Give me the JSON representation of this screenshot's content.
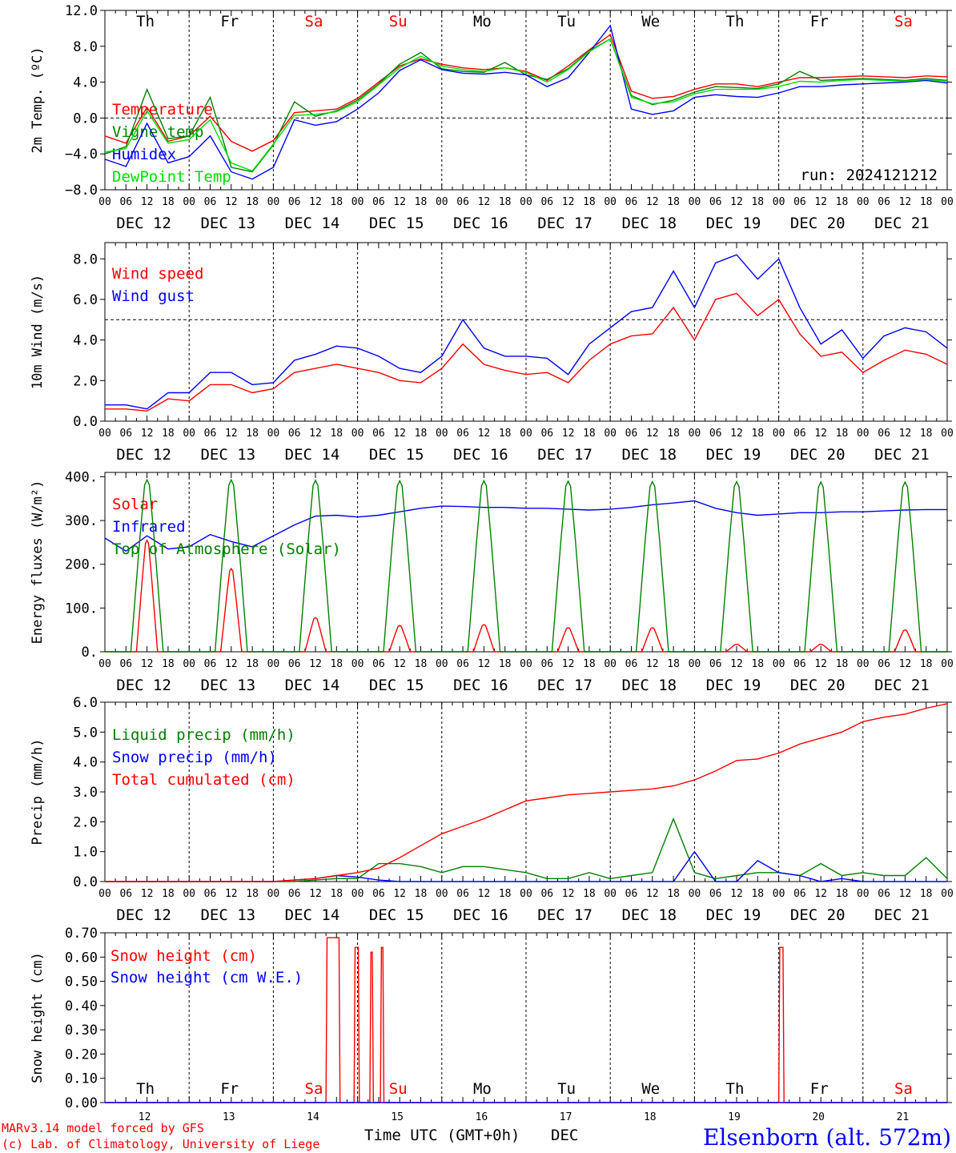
{
  "colors": {
    "red": "#ff0000",
    "green": "#008000",
    "blue": "#0000ff",
    "lime": "#00e000"
  },
  "footer": {
    "model_line": "MARv3.14 model forced by GFS",
    "credit_line": "(c) Lab. of Climatology, University of Liege",
    "time_label": "Time UTC (GMT+0h)",
    "month_label": "DEC",
    "site": "Elsenborn (alt. 572m)"
  },
  "chart_data": [
    {
      "type": "line",
      "panel": "temperature",
      "ylabel": "2m Temp. (ºC)",
      "ylim": [
        -8,
        12
      ],
      "yticks": [
        "−8.0",
        "−4.0",
        "0.0",
        "4.0",
        "8.0",
        "12.0"
      ],
      "ytick_values": [
        -8,
        -4,
        0,
        4,
        8,
        12
      ],
      "ref_line": 0,
      "run_label": "run: 2024121212",
      "day_names": [
        "Th",
        "Fr",
        "Sa",
        "Su",
        "Mo",
        "Tu",
        "We",
        "Th",
        "Fr",
        "Sa"
      ],
      "x_hours_ticks": [
        "00",
        "06",
        "12",
        "18"
      ],
      "x_dates": [
        "DEC 12",
        "DEC 13",
        "DEC 14",
        "DEC 15",
        "DEC 16",
        "DEC 17",
        "DEC 18",
        "DEC 19",
        "DEC 20",
        "DEC 21"
      ],
      "x_hours": [
        0,
        6,
        12,
        18,
        24,
        30,
        36,
        42,
        48,
        54,
        60,
        66,
        72,
        78,
        84,
        90,
        96,
        102,
        108,
        114,
        120,
        126,
        132,
        138,
        144,
        150,
        156,
        162,
        168,
        174,
        180,
        186,
        192,
        198,
        204,
        210,
        216,
        222,
        228,
        234,
        240
      ],
      "series": [
        {
          "name": "Temperature",
          "color": "red",
          "values": [
            -2,
            -2.8,
            1.2,
            -2.6,
            -2,
            0.2,
            -2.6,
            -3.7,
            -2.5,
            0.6,
            0.8,
            1,
            2.2,
            4,
            5.8,
            6.6,
            6,
            5.6,
            5.4,
            5.6,
            5.2,
            4.2,
            5.8,
            7.6,
            9.3,
            3,
            2.2,
            2.4,
            3.2,
            3.8,
            3.8,
            3.5,
            4,
            4.5,
            4.5,
            4.6,
            4.7,
            4.6,
            4.5,
            4.7,
            4.6
          ]
        },
        {
          "name": "Vigne temp",
          "color": "green",
          "values": [
            -4,
            -3.2,
            3.2,
            -2.3,
            -2,
            2.3,
            -5.5,
            -6,
            -3,
            1.8,
            0.2,
            0.8,
            2,
            3.8,
            6,
            7.3,
            5.5,
            5.2,
            5.1,
            6.2,
            4.8,
            4.3,
            5.5,
            7.5,
            8.8,
            2.5,
            1.5,
            2,
            2.9,
            3.5,
            3.4,
            3.3,
            3.8,
            5.2,
            4.2,
            4.3,
            4.4,
            4.3,
            4.2,
            4.4,
            4.2
          ]
        },
        {
          "name": "Humidex",
          "color": "blue",
          "values": [
            -4.6,
            -5.4,
            -0.6,
            -5,
            -4.3,
            -2,
            -6,
            -6.8,
            -5.5,
            -0.2,
            -0.8,
            -0.4,
            1,
            2.8,
            5.3,
            6.5,
            5.4,
            5,
            4.9,
            5.1,
            4.8,
            3.5,
            4.5,
            7.3,
            10.3,
            1,
            0.4,
            0.8,
            2.3,
            2.6,
            2.4,
            2.3,
            2.8,
            3.5,
            3.5,
            3.7,
            3.8,
            3.9,
            4,
            4.2,
            3.9
          ]
        },
        {
          "name": "DewPoint Temp",
          "color": "lime",
          "values": [
            -3.8,
            -3.4,
            0.8,
            -2.8,
            -2.4,
            -0.2,
            -5,
            -5.9,
            -2.9,
            0.3,
            0.4,
            0.7,
            1.8,
            3.7,
            5.6,
            6.9,
            5.8,
            5.4,
            5.2,
            5.6,
            5.1,
            4,
            5.4,
            7.4,
            8.8,
            2.3,
            1.6,
            1.8,
            2.7,
            3.2,
            3.2,
            3.2,
            3.5,
            4.1,
            4,
            4.2,
            4.3,
            4.2,
            4.1,
            4.3,
            4.1
          ]
        }
      ]
    },
    {
      "type": "line",
      "panel": "wind",
      "ylabel": "10m Wind (m/s)",
      "ylim": [
        0,
        8.8
      ],
      "yticks": [
        "0.0",
        "2.0",
        "4.0",
        "6.0",
        "8.0"
      ],
      "ytick_values": [
        0,
        2,
        4,
        6,
        8
      ],
      "ref_line": 5,
      "x_hours_ticks": [
        "00",
        "06",
        "12",
        "18"
      ],
      "x_dates": [
        "DEC 12",
        "DEC 13",
        "DEC 14",
        "DEC 15",
        "DEC 16",
        "DEC 17",
        "DEC 18",
        "DEC 19",
        "DEC 20",
        "DEC 21"
      ],
      "x_hours": [
        0,
        6,
        12,
        18,
        24,
        30,
        36,
        42,
        48,
        54,
        60,
        66,
        72,
        78,
        84,
        90,
        96,
        102,
        108,
        114,
        120,
        126,
        132,
        138,
        144,
        150,
        156,
        162,
        168,
        174,
        180,
        186,
        192,
        198,
        204,
        210,
        216,
        222,
        228,
        234,
        240
      ],
      "series": [
        {
          "name": "Wind speed",
          "color": "red",
          "values": [
            0.6,
            0.6,
            0.5,
            1.1,
            1,
            1.8,
            1.8,
            1.4,
            1.6,
            2.4,
            2.6,
            2.8,
            2.6,
            2.4,
            2,
            1.9,
            2.6,
            3.8,
            2.8,
            2.5,
            2.3,
            2.4,
            1.9,
            3,
            3.8,
            4.2,
            4.3,
            5.6,
            4,
            6,
            6.3,
            5.2,
            6,
            4.3,
            3.2,
            3.4,
            2.4,
            3,
            3.5,
            3.3,
            2.8
          ]
        },
        {
          "name": "Wind gust",
          "color": "blue",
          "values": [
            0.8,
            0.8,
            0.6,
            1.4,
            1.4,
            2.4,
            2.4,
            1.8,
            1.9,
            3,
            3.3,
            3.7,
            3.6,
            3.2,
            2.6,
            2.4,
            3.2,
            5,
            3.6,
            3.2,
            3.2,
            3.1,
            2.3,
            3.8,
            4.6,
            5.4,
            5.6,
            7.4,
            5.6,
            7.8,
            8.2,
            7,
            8,
            5.6,
            3.8,
            4.5,
            3.1,
            4.2,
            4.6,
            4.4,
            3.6
          ]
        }
      ]
    },
    {
      "type": "line",
      "panel": "energy",
      "ylabel": "Energy fluxes (W/m²)",
      "ylim": [
        0,
        410
      ],
      "yticks": [
        "0.",
        "100.",
        "200.",
        "300.",
        "400."
      ],
      "ytick_values": [
        0,
        100,
        200,
        300,
        400
      ],
      "x_hours_ticks": [
        "00",
        "06",
        "12",
        "18"
      ],
      "x_dates": [
        "DEC 12",
        "DEC 13",
        "DEC 14",
        "DEC 15",
        "DEC 16",
        "DEC 17",
        "DEC 18",
        "DEC 19",
        "DEC 20",
        "DEC 21"
      ],
      "x_hours": [
        0,
        6,
        12,
        18,
        24,
        30,
        36,
        42,
        48,
        54,
        60,
        66,
        72,
        78,
        84,
        90,
        96,
        102,
        108,
        114,
        120,
        126,
        132,
        138,
        144,
        150,
        156,
        162,
        168,
        174,
        180,
        186,
        192,
        198,
        204,
        210,
        216,
        222,
        228,
        234,
        240
      ],
      "series": [
        {
          "name": "Solar",
          "color": "red",
          "daily_peaks": [
            255,
            190,
            78,
            60,
            62,
            55,
            55,
            17,
            17,
            50
          ]
        },
        {
          "name": "Infrared",
          "color": "blue",
          "values": [
            260,
            230,
            265,
            235,
            240,
            268,
            252,
            240,
            265,
            290,
            310,
            312,
            308,
            312,
            320,
            328,
            333,
            332,
            330,
            330,
            328,
            328,
            326,
            324,
            326,
            330,
            336,
            340,
            345,
            328,
            318,
            312,
            315,
            318,
            318,
            320,
            320,
            322,
            324,
            325,
            325
          ]
        },
        {
          "name": "Top of Atmosphere (Solar)",
          "color": "green",
          "daily_peaks": [
            393,
            393,
            392,
            391,
            391,
            390,
            389,
            389,
            388,
            388
          ]
        }
      ]
    },
    {
      "type": "line",
      "panel": "precip",
      "ylabel": "Precip (mm/h)",
      "ylim": [
        0,
        6
      ],
      "yticks": [
        "0.0",
        "1.0",
        "2.0",
        "3.0",
        "4.0",
        "5.0",
        "6.0"
      ],
      "ytick_values": [
        0,
        1,
        2,
        3,
        4,
        5,
        6
      ],
      "x_hours_ticks": [
        "00",
        "06",
        "12",
        "18"
      ],
      "x_dates": [
        "DEC 12",
        "DEC 13",
        "DEC 14",
        "DEC 15",
        "DEC 16",
        "DEC 17",
        "DEC 18",
        "DEC 19",
        "DEC 20",
        "DEC 21"
      ],
      "x_hours": [
        0,
        6,
        12,
        18,
        24,
        30,
        36,
        42,
        48,
        54,
        60,
        66,
        72,
        78,
        84,
        90,
        96,
        102,
        108,
        114,
        120,
        126,
        132,
        138,
        144,
        150,
        156,
        162,
        168,
        174,
        180,
        186,
        192,
        198,
        204,
        210,
        216,
        222,
        228,
        234,
        240
      ],
      "series": [
        {
          "name": "Liquid precip (mm/h)",
          "color": "green",
          "values": [
            0,
            0,
            0,
            0,
            0,
            0,
            0,
            0,
            0,
            0,
            0.05,
            0.1,
            0.1,
            0.6,
            0.6,
            0.5,
            0.3,
            0.5,
            0.5,
            0.4,
            0.3,
            0.1,
            0.1,
            0.3,
            0.1,
            0.2,
            0.3,
            2.1,
            0.3,
            0.1,
            0.2,
            0.3,
            0.3,
            0.2,
            0.6,
            0.2,
            0.3,
            0.2,
            0.2,
            0.8,
            0.1
          ]
        },
        {
          "name": "Snow precip (mm/h)",
          "color": "blue",
          "values": [
            0,
            0,
            0,
            0,
            0,
            0,
            0,
            0,
            0,
            0.05,
            0.1,
            0.2,
            0.15,
            0.05,
            0,
            0,
            0,
            0,
            0,
            0,
            0,
            0,
            0,
            0,
            0,
            0,
            0,
            0,
            1,
            0,
            0,
            0.7,
            0.3,
            0.2,
            0,
            0.1,
            0,
            0,
            0,
            0,
            0
          ]
        },
        {
          "name": "Total cumulated (cm)",
          "color": "red",
          "values": [
            0,
            0,
            0,
            0,
            0,
            0,
            0,
            0,
            0,
            0.05,
            0.1,
            0.2,
            0.3,
            0.45,
            0.8,
            1.2,
            1.6,
            1.85,
            2.1,
            2.4,
            2.7,
            2.8,
            2.9,
            2.95,
            3,
            3.05,
            3.1,
            3.2,
            3.4,
            3.7,
            4.05,
            4.1,
            4.3,
            4.6,
            4.8,
            5.0,
            5.35,
            5.5,
            5.6,
            5.8,
            5.95
          ]
        }
      ]
    },
    {
      "type": "line",
      "panel": "snow",
      "ylabel": "Snow height (cm)",
      "ylim": [
        0,
        0.7
      ],
      "yticks": [
        "0.00",
        "0.10",
        "0.20",
        "0.30",
        "0.40",
        "0.50",
        "0.60",
        "0.70"
      ],
      "ytick_values": [
        0,
        0.1,
        0.2,
        0.3,
        0.4,
        0.5,
        0.6,
        0.7
      ],
      "day_names": [
        "Th",
        "Fr",
        "Sa",
        "Su",
        "Mo",
        "Tu",
        "We",
        "Th",
        "Fr",
        "Sa"
      ],
      "x_day_numbers": [
        "12",
        "13",
        "14",
        "15",
        "16",
        "17",
        "18",
        "19",
        "20",
        "21"
      ],
      "series": [
        {
          "name": "Snow height (cm)",
          "color": "red",
          "spikes": [
            {
              "start_h": 63,
              "end_h": 67,
              "value": 0.68
            },
            {
              "start_h": 71,
              "end_h": 72.5,
              "value": 0.64
            },
            {
              "start_h": 75.5,
              "end_h": 76.5,
              "value": 0.62
            },
            {
              "start_h": 78.5,
              "end_h": 79.5,
              "value": 0.64
            },
            {
              "start_h": 192,
              "end_h": 193.5,
              "value": 0.64
            }
          ]
        },
        {
          "name": "Snow height (cm W.E.)",
          "color": "blue",
          "values": [
            0,
            0
          ]
        }
      ]
    }
  ]
}
